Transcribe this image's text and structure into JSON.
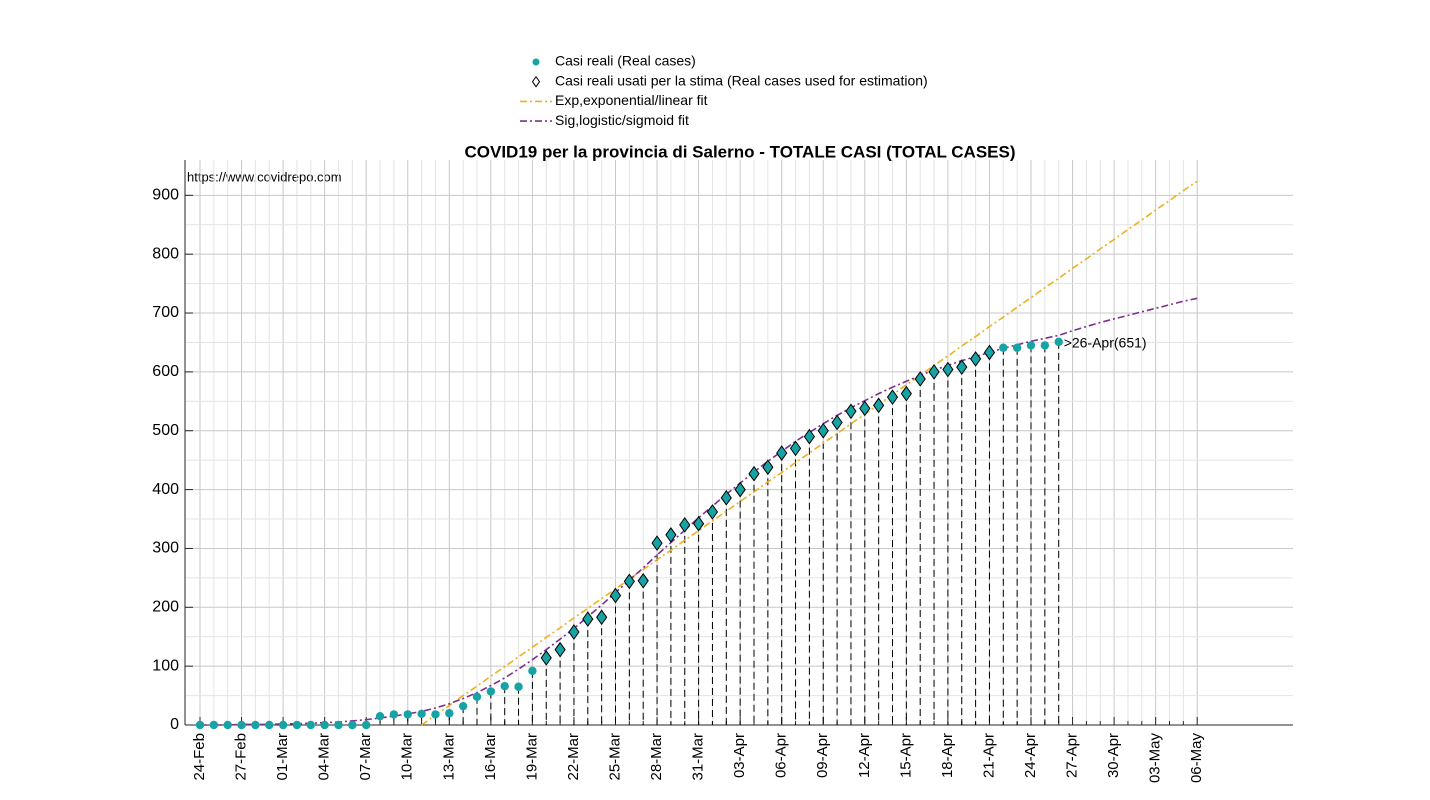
{
  "chart_data": {
    "type": "line",
    "title": "COVID19 per la provincia di Salerno - TOTALE CASI (TOTAL CASES)",
    "annotations": [
      "https://www.covidrepo.com",
      ">26-Apr(651)"
    ],
    "categories": [
      "24-Feb",
      null,
      null,
      "27-Feb",
      null,
      null,
      "01-Mar",
      null,
      null,
      "04-Mar",
      null,
      null,
      "07-Mar",
      null,
      null,
      "10-Mar",
      null,
      null,
      "13-Mar",
      null,
      null,
      "16-Mar",
      null,
      null,
      "19-Mar",
      null,
      null,
      "22-Mar",
      null,
      null,
      "25-Mar",
      null,
      null,
      "28-Mar",
      null,
      null,
      "31-Mar",
      null,
      null,
      "03-Apr",
      null,
      null,
      "06-Apr",
      null,
      null,
      "09-Apr",
      null,
      null,
      "12-Apr",
      null,
      null,
      "15-Apr",
      null,
      null,
      "18-Apr",
      null,
      null,
      "21-Apr",
      null,
      null,
      "24-Apr",
      null,
      null,
      "27-Apr",
      null,
      null,
      "30-Apr",
      null,
      null,
      "03-May",
      null,
      null,
      "06-May"
    ],
    "series": [
      {
        "name": "Casi reali (Real cases)",
        "color": "#17a3a3",
        "marker": "circle",
        "stems": true,
        "values": [
          0,
          0,
          0,
          0,
          0,
          0,
          0,
          0,
          0,
          0,
          0,
          0,
          0,
          15,
          18,
          18,
          19,
          18,
          20,
          32,
          48,
          57,
          66,
          65,
          92,
          114,
          128,
          158,
          180,
          183,
          220,
          244,
          245,
          309,
          323,
          340,
          342,
          362,
          386,
          400,
          427,
          438,
          462,
          470,
          490,
          500,
          514,
          533,
          538,
          543,
          557,
          563,
          588,
          600,
          604,
          608,
          622,
          633,
          641,
          641,
          645,
          645,
          651,
          null,
          null,
          null,
          null,
          null,
          null,
          null,
          null,
          null,
          null
        ]
      },
      {
        "name": "Casi reali usati per la stima (Real cases used for estimation)",
        "color": "#17a3a3",
        "marker": "diamond",
        "values": [
          null,
          null,
          null,
          null,
          null,
          null,
          null,
          null,
          null,
          null,
          null,
          null,
          null,
          null,
          null,
          null,
          null,
          null,
          null,
          null,
          null,
          null,
          null,
          null,
          null,
          114,
          128,
          158,
          180,
          183,
          220,
          244,
          245,
          309,
          323,
          340,
          342,
          362,
          386,
          400,
          427,
          438,
          462,
          470,
          490,
          500,
          514,
          533,
          538,
          543,
          557,
          563,
          588,
          600,
          604,
          608,
          622,
          633,
          null,
          null,
          null,
          null,
          null,
          null,
          null,
          null,
          null,
          null,
          null,
          null,
          null,
          null,
          null
        ]
      },
      {
        "name": "Exp,exponential/linear fit",
        "color": "#edb120",
        "marker": "dashdot",
        "values": [
          null,
          null,
          null,
          null,
          null,
          null,
          null,
          null,
          null,
          null,
          null,
          null,
          null,
          null,
          null,
          null,
          0,
          17,
          33,
          50,
          66,
          83,
          99,
          116,
          132,
          149,
          165,
          182,
          198,
          215,
          231,
          248,
          264,
          281,
          297,
          314,
          330,
          347,
          363,
          380,
          396,
          413,
          429,
          446,
          462,
          479,
          495,
          512,
          528,
          545,
          561,
          578,
          594,
          611,
          627,
          644,
          660,
          677,
          693,
          710,
          726,
          743,
          759,
          776,
          792,
          809,
          825,
          842,
          858,
          875,
          891,
          908,
          924
        ]
      },
      {
        "name": "Sig,logistic/sigmoid fit",
        "color": "#7e2f8e",
        "marker": "dashdot",
        "values": [
          0,
          0,
          0,
          1,
          1,
          1,
          2,
          2,
          3,
          4,
          5,
          7,
          9,
          12,
          15,
          19,
          23,
          29,
          36,
          45,
          55,
          67,
          80,
          95,
          111,
          128,
          146,
          164,
          184,
          204,
          225,
          246,
          267,
          289,
          310,
          331,
          352,
          372,
          392,
          411,
          430,
          448,
          465,
          482,
          497,
          512,
          526,
          539,
          551,
          563,
          574,
          584,
          594,
          603,
          611,
          619,
          626,
          633,
          640,
          646,
          652,
          657,
          662,
          670,
          677,
          684,
          690,
          696,
          702,
          708,
          714,
          720,
          725
        ]
      }
    ],
    "ylim": [
      0,
      960
    ],
    "yticks": [
      0,
      100,
      200,
      300,
      400,
      500,
      600,
      700,
      800,
      900
    ],
    "grid": true
  }
}
